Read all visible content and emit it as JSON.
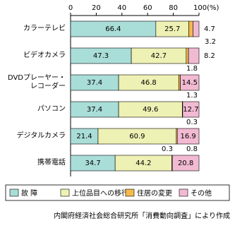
{
  "chart_data": {
    "type": "stacked-bar-horizontal",
    "categories": [
      "カラーテレビ",
      "ビデオカメラ",
      "DVDプレーヤー・\nレコーダー",
      "パソコン",
      "デジタルカメラ",
      "携帯電話"
    ],
    "series": [
      {
        "name": "故 障",
        "color": "#a9ddd8",
        "values": [
          66.4,
          47.3,
          37.4,
          37.4,
          21.4,
          34.7
        ]
      },
      {
        "name": "上位品目への移行",
        "color": "#eef1b4",
        "values": [
          25.7,
          42.7,
          46.8,
          49.6,
          60.9,
          44.2
        ]
      },
      {
        "name": "住居の変更",
        "color": "#f6b94c",
        "values": [
          3.2,
          1.8,
          1.3,
          0.3,
          0.8,
          0.3
        ]
      },
      {
        "name": "その他",
        "color": "#f2bad2",
        "values": [
          4.7,
          8.2,
          14.5,
          12.7,
          16.9,
          20.8
        ]
      }
    ],
    "xlim": [
      0,
      100
    ],
    "xticks": [
      0,
      20,
      40,
      60,
      80,
      {
        "value": 100,
        "label": "100(%)"
      }
    ],
    "legend": "bottom",
    "source": "内閣府経済社会総合研究所「消費動向調査」により作成"
  }
}
